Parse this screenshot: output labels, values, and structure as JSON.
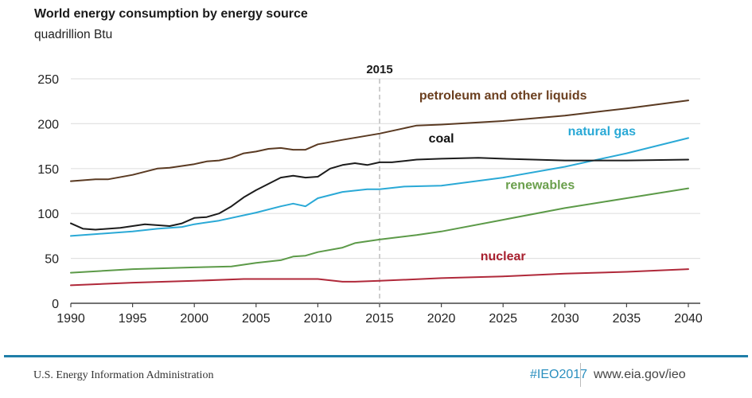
{
  "header": {
    "title": "World energy consumption by energy source",
    "subtitle": "quadrillion Btu"
  },
  "footer": {
    "source": "U.S. Energy Information Administration",
    "hashtag": "#IEO2017",
    "url": "www.eia.gov/ieo",
    "rule_color": "#1f7ea8"
  },
  "chart_data": {
    "type": "line",
    "title": "World energy consumption by energy source",
    "ylabel": "quadrillion Btu",
    "xlabel": "",
    "xlim": [
      1990,
      2040
    ],
    "ylim": [
      0,
      250
    ],
    "grid": true,
    "xticks": [
      1990,
      1995,
      2000,
      2005,
      2010,
      2015,
      2020,
      2025,
      2030,
      2035,
      2040
    ],
    "yticks": [
      0,
      50,
      100,
      150,
      200,
      250
    ],
    "annotation": {
      "label": "2015",
      "x": 2015,
      "style": "dashed-vertical"
    },
    "series": [
      {
        "name": "petroleum and other liquids",
        "color": "#5a3a22",
        "label_color": "#6b3f1f",
        "x": [
          1990,
          1992,
          1993,
          1995,
          1997,
          1998,
          2000,
          2001,
          2002,
          2003,
          2004,
          2005,
          2006,
          2007,
          2008,
          2009,
          2010,
          2012,
          2015,
          2018,
          2020,
          2025,
          2030,
          2035,
          2040
        ],
        "y": [
          136,
          138,
          138,
          143,
          150,
          151,
          155,
          158,
          159,
          162,
          167,
          169,
          172,
          173,
          171,
          171,
          177,
          182,
          189,
          198,
          199,
          203,
          209,
          217,
          226
        ]
      },
      {
        "name": "natural gas",
        "color": "#2aa9d6",
        "label_color": "#2aa9d6",
        "x": [
          1990,
          1992,
          1995,
          1997,
          1999,
          2000,
          2002,
          2005,
          2007,
          2008,
          2009,
          2010,
          2012,
          2014,
          2015,
          2017,
          2020,
          2025,
          2030,
          2035,
          2040
        ],
        "y": [
          75,
          77,
          80,
          83,
          85,
          88,
          92,
          101,
          108,
          111,
          108,
          117,
          124,
          127,
          127,
          130,
          131,
          140,
          152,
          167,
          184
        ]
      },
      {
        "name": "coal",
        "color": "#1c1c1c",
        "label_color": "#111111",
        "x": [
          1990,
          1991,
          1992,
          1994,
          1996,
          1997,
          1998,
          1999,
          2000,
          2001,
          2002,
          2003,
          2004,
          2005,
          2006,
          2007,
          2008,
          2009,
          2010,
          2011,
          2012,
          2013,
          2014,
          2015,
          2016,
          2018,
          2020,
          2023,
          2025,
          2030,
          2035,
          2040
        ],
        "y": [
          89,
          83,
          82,
          84,
          88,
          87,
          86,
          89,
          95,
          96,
          100,
          108,
          118,
          126,
          133,
          140,
          142,
          140,
          141,
          150,
          154,
          156,
          154,
          157,
          157,
          160,
          161,
          162,
          161,
          159,
          159,
          160
        ]
      },
      {
        "name": "renewables",
        "color": "#5c9a48",
        "label_color": "#6a9f4c",
        "x": [
          1990,
          1995,
          2000,
          2003,
          2005,
          2007,
          2008,
          2009,
          2010,
          2012,
          2013,
          2015,
          2018,
          2020,
          2025,
          2030,
          2035,
          2040
        ],
        "y": [
          34,
          38,
          40,
          41,
          45,
          48,
          52,
          53,
          57,
          62,
          67,
          71,
          76,
          80,
          93,
          106,
          117,
          128
        ]
      },
      {
        "name": "nuclear",
        "color": "#b0293a",
        "label_color": "#a8202f",
        "x": [
          1990,
          1995,
          2000,
          2004,
          2010,
          2012,
          2013,
          2015,
          2020,
          2025,
          2030,
          2035,
          2040
        ],
        "y": [
          20,
          23,
          25,
          27,
          27,
          24,
          24,
          25,
          28,
          30,
          33,
          35,
          38
        ]
      }
    ],
    "series_labels": [
      {
        "series": "petroleum and other liquids",
        "x": 2025,
        "y": 227
      },
      {
        "series": "natural gas",
        "x": 2033,
        "y": 187
      },
      {
        "series": "coal",
        "x": 2020,
        "y": 179
      },
      {
        "series": "renewables",
        "x": 2028,
        "y": 127
      },
      {
        "series": "nuclear",
        "x": 2025,
        "y": 48
      }
    ]
  }
}
